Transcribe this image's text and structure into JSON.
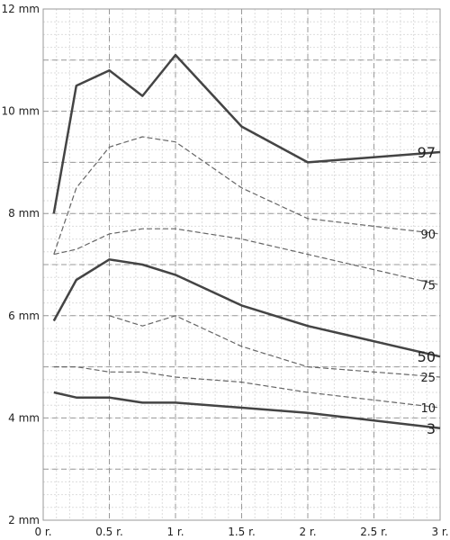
{
  "chart_data": {
    "type": "line",
    "title": "",
    "xlabel": "",
    "ylabel": "",
    "xlim": [
      0,
      3
    ],
    "ylim": [
      2,
      12
    ],
    "grid": true,
    "x_ticks": [
      {
        "value": 0,
        "label": "0 r."
      },
      {
        "value": 0.5,
        "label": "0.5 r."
      },
      {
        "value": 1,
        "label": "1 r."
      },
      {
        "value": 1.5,
        "label": "1.5 r."
      },
      {
        "value": 2,
        "label": "2 r."
      },
      {
        "value": 2.5,
        "label": "2.5 r."
      },
      {
        "value": 3,
        "label": "3 r."
      }
    ],
    "y_ticks": [
      {
        "value": 2,
        "label": "2 mm"
      },
      {
        "value": 4,
        "label": "4 mm"
      },
      {
        "value": 6,
        "label": "6 mm"
      },
      {
        "value": 8,
        "label": "8 mm"
      },
      {
        "value": 10,
        "label": "10 mm"
      },
      {
        "value": 12,
        "label": "12 mm"
      }
    ],
    "series": [
      {
        "name": "97",
        "style": "solid",
        "color": "#444444",
        "x": [
          0.08,
          0.25,
          0.5,
          0.75,
          1,
          1.5,
          2,
          3
        ],
        "y": [
          8.0,
          10.5,
          10.8,
          10.3,
          11.1,
          9.7,
          9.0,
          9.2
        ]
      },
      {
        "name": "90",
        "style": "dashed",
        "color": "#666666",
        "x": [
          0.08,
          0.25,
          0.5,
          0.75,
          1,
          1.5,
          2,
          3
        ],
        "y": [
          7.2,
          8.5,
          9.3,
          9.5,
          9.4,
          8.5,
          7.9,
          7.6
        ]
      },
      {
        "name": "75",
        "style": "dashed",
        "color": "#666666",
        "x": [
          0.08,
          0.25,
          0.5,
          0.75,
          1,
          1.5,
          2,
          3
        ],
        "y": [
          7.2,
          7.3,
          7.6,
          7.7,
          7.7,
          7.5,
          7.2,
          6.6
        ]
      },
      {
        "name": "50",
        "style": "solid",
        "color": "#444444",
        "x": [
          0.08,
          0.25,
          0.5,
          0.75,
          1,
          1.5,
          2,
          3
        ],
        "y": [
          5.9,
          6.7,
          7.1,
          7.0,
          6.8,
          6.2,
          5.8,
          5.2
        ]
      },
      {
        "name": "25",
        "style": "dashed",
        "color": "#666666",
        "x": [
          0.5,
          0.75,
          1,
          1.5,
          2,
          3
        ],
        "y": [
          6.0,
          5.8,
          6.0,
          5.4,
          5.0,
          4.8
        ]
      },
      {
        "name": "10",
        "style": "dashed",
        "color": "#666666",
        "x": [
          0.08,
          0.25,
          0.5,
          0.75,
          1,
          1.5,
          2,
          3
        ],
        "y": [
          5.0,
          5.0,
          4.9,
          4.9,
          4.8,
          4.7,
          4.5,
          4.2
        ]
      },
      {
        "name": "3",
        "style": "solid",
        "color": "#444444",
        "x": [
          0.08,
          0.25,
          0.5,
          0.75,
          1,
          1.5,
          2,
          3
        ],
        "y": [
          4.5,
          4.4,
          4.4,
          4.3,
          4.3,
          4.2,
          4.1,
          3.8
        ]
      }
    ]
  }
}
